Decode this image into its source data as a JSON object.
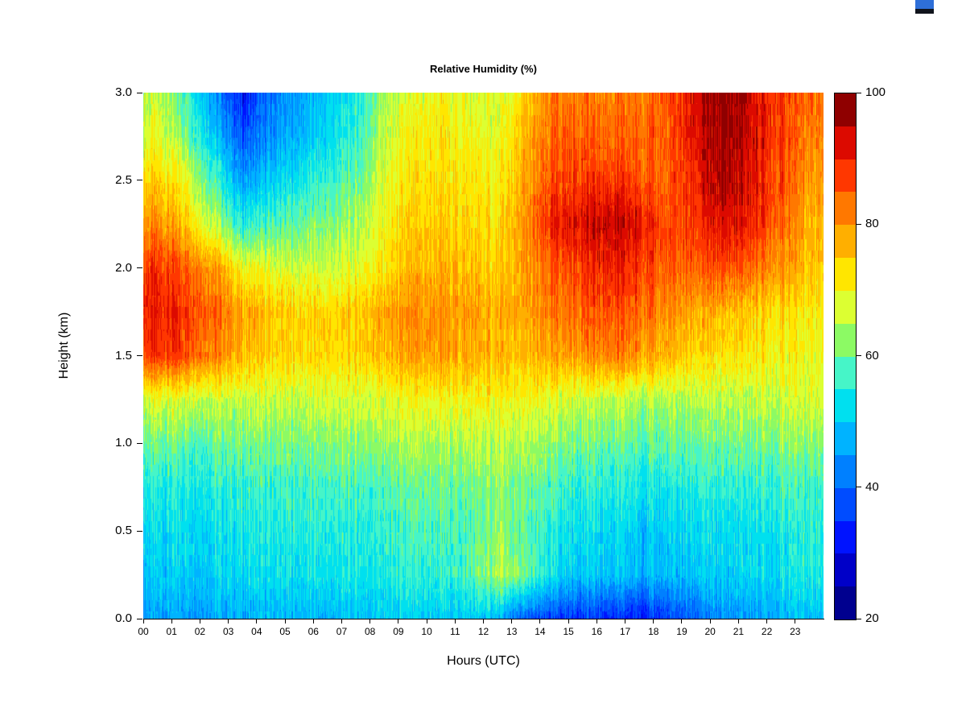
{
  "figure": {
    "background": "#ffffff"
  },
  "corner_artifact": {
    "blue": "#2E6FD8",
    "dark": "#10141c"
  },
  "chart_data": {
    "type": "heatmap",
    "title": "Relative Humidity (%)",
    "xlabel": "Hours (UTC)",
    "ylabel": "Height (km)",
    "x_ticks": [
      "00",
      "01",
      "02",
      "03",
      "04",
      "05",
      "06",
      "07",
      "08",
      "09",
      "10",
      "11",
      "12",
      "13",
      "14",
      "15",
      "16",
      "17",
      "18",
      "19",
      "20",
      "21",
      "22",
      "23"
    ],
    "y_ticks": [
      "0.0",
      "0.5",
      "1.0",
      "1.5",
      "2.0",
      "2.5",
      "3.0"
    ],
    "x_hours": [
      0,
      1,
      2,
      3,
      4,
      5,
      6,
      7,
      8,
      9,
      10,
      11,
      12,
      13,
      14,
      15,
      16,
      17,
      18,
      19,
      20,
      21,
      22,
      23
    ],
    "y_heights_km": [
      0.0,
      0.25,
      0.5,
      0.75,
      1.0,
      1.25,
      1.5,
      1.75,
      2.0,
      2.25,
      2.5,
      2.75,
      3.0
    ],
    "xlim": [
      0,
      24
    ],
    "ylim": [
      0.0,
      3.0
    ],
    "zlim": [
      20,
      100
    ],
    "level_step": 5,
    "grid": false,
    "legend": "colorbar-right",
    "colorbar_ticks": [
      20,
      40,
      60,
      80,
      100
    ],
    "palette": [
      "#00008F",
      "#0000C8",
      "#0013FF",
      "#004CFF",
      "#0080FF",
      "#00B3FF",
      "#00E0EF",
      "#46F5C8",
      "#8CFA64",
      "#DCFF32",
      "#FFE600",
      "#FFAF00",
      "#FF7800",
      "#FF3700",
      "#DC0A00",
      "#8F0000"
    ],
    "values_note": "relative humidity (%) rows ordered by ascending height (0.0 km first), columns by hour 00-23",
    "values": [
      [
        46,
        46,
        47,
        47,
        48,
        48,
        48,
        49,
        50,
        50,
        50,
        50,
        48,
        38,
        36,
        36,
        34,
        33,
        36,
        40,
        44,
        46,
        48,
        50
      ],
      [
        50,
        51,
        51,
        52,
        52,
        53,
        53,
        54,
        54,
        55,
        56,
        58,
        65,
        60,
        52,
        50,
        50,
        48,
        48,
        50,
        50,
        52,
        53,
        55
      ],
      [
        52,
        53,
        53,
        54,
        54,
        55,
        55,
        55,
        56,
        57,
        58,
        58,
        62,
        58,
        54,
        53,
        52,
        50,
        50,
        52,
        52,
        53,
        54,
        56
      ],
      [
        55,
        55,
        56,
        56,
        56,
        57,
        57,
        58,
        58,
        59,
        60,
        60,
        62,
        60,
        57,
        56,
        55,
        54,
        54,
        55,
        55,
        56,
        57,
        58
      ],
      [
        60,
        60,
        60,
        61,
        61,
        61,
        62,
        62,
        63,
        64,
        64,
        65,
        65,
        64,
        62,
        61,
        60,
        59,
        59,
        60,
        60,
        61,
        62,
        63
      ],
      [
        68,
        68,
        67,
        66,
        66,
        66,
        67,
        67,
        68,
        69,
        70,
        70,
        70,
        69,
        68,
        67,
        66,
        65,
        64,
        65,
        65,
        66,
        67,
        68
      ],
      [
        88,
        87,
        82,
        76,
        74,
        74,
        73,
        74,
        76,
        78,
        79,
        78,
        76,
        75,
        78,
        80,
        82,
        80,
        76,
        74,
        72,
        72,
        71,
        70
      ],
      [
        90,
        89,
        85,
        78,
        75,
        74,
        74,
        75,
        78,
        80,
        80,
        79,
        77,
        78,
        82,
        85,
        86,
        84,
        80,
        78,
        76,
        75,
        73,
        72
      ],
      [
        88,
        85,
        80,
        70,
        68,
        67,
        66,
        68,
        72,
        76,
        77,
        76,
        74,
        78,
        84,
        88,
        90,
        88,
        84,
        84,
        86,
        84,
        80,
        76
      ],
      [
        80,
        76,
        66,
        55,
        58,
        60,
        62,
        64,
        70,
        74,
        75,
        74,
        72,
        80,
        90,
        94,
        95,
        92,
        86,
        88,
        92,
        90,
        84,
        78
      ],
      [
        74,
        70,
        58,
        45,
        50,
        54,
        56,
        60,
        68,
        72,
        73,
        72,
        70,
        78,
        86,
        88,
        88,
        86,
        84,
        90,
        96,
        92,
        86,
        80
      ],
      [
        68,
        62,
        50,
        38,
        44,
        48,
        52,
        56,
        66,
        70,
        72,
        70,
        68,
        76,
        84,
        85,
        84,
        84,
        84,
        92,
        97,
        93,
        87,
        82
      ],
      [
        66,
        58,
        45,
        32,
        42,
        46,
        50,
        54,
        64,
        68,
        70,
        68,
        66,
        74,
        82,
        83,
        82,
        83,
        85,
        93,
        98,
        94,
        88,
        84
      ]
    ]
  }
}
